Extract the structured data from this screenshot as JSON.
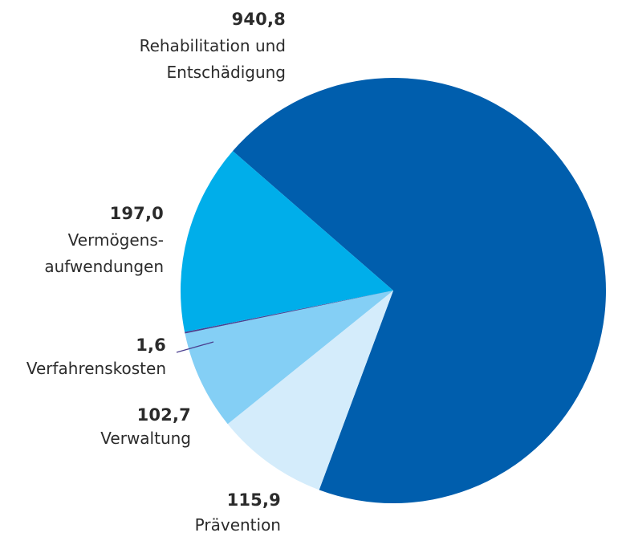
{
  "chart_data": {
    "type": "pie",
    "title": "",
    "start_angle_deg": -139,
    "direction": "clockwise",
    "slices": [
      {
        "value": 940.8,
        "value_label": "940,8",
        "label_lines": [
          "Rehabilitation und",
          "Entschädigung"
        ],
        "color": "#005ead"
      },
      {
        "value": 115.9,
        "value_label": "115,9",
        "label_lines": [
          "Prävention"
        ],
        "color": "#d4ecfb"
      },
      {
        "value": 102.7,
        "value_label": "102,7",
        "label_lines": [
          "Verwaltung"
        ],
        "color": "#84cff5"
      },
      {
        "value": 1.6,
        "value_label": "1,6",
        "label_lines": [
          "Verfahrenskosten"
        ],
        "color": "#4b3f8f"
      },
      {
        "value": 197.0,
        "value_label": "197,0",
        "label_lines": [
          "Vermögens-",
          "aufwendungen"
        ],
        "color": "#00aeea"
      }
    ]
  }
}
